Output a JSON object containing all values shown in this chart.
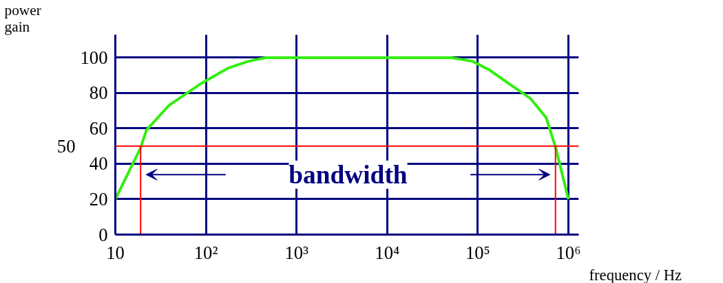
{
  "chart_data": {
    "type": "line",
    "xlabel": "frequency / Hz",
    "ylabel": "power gain",
    "log": "x",
    "xlim": [
      10,
      1300000
    ],
    "ylim": [
      0,
      113
    ],
    "xticks": [
      10,
      {
        "value": 100,
        "label": "10²"
      },
      {
        "value": 1000,
        "label": "10³"
      },
      {
        "value": 10000,
        "label": "10⁴"
      },
      {
        "value": 100000,
        "label": "10⁵"
      },
      {
        "value": 1000000,
        "label": "10⁶"
      }
    ],
    "yticks": [
      0,
      20,
      40,
      60,
      80,
      100
    ],
    "grid": true,
    "marker": "none",
    "line_style": "solid",
    "series": [
      {
        "color": "#33ee11",
        "x": [
          10,
          19,
          22,
          39,
          86,
          174,
          295,
          457,
          51000,
          87000,
          135000,
          225000,
          380000,
          570000,
          725000,
          1000000
        ],
        "values": [
          20,
          49,
          59,
          73,
          85,
          94,
          98,
          100,
          100,
          98,
          93,
          85,
          77,
          66,
          49,
          20
        ]
      },
      {
        "color": "#ff0000",
        "x": [
          19,
          19
        ],
        "values": [
          0,
          50
        ]
      },
      {
        "color": "#ff0000",
        "x": [
          720000,
          720000
        ],
        "values": [
          0,
          50
        ]
      }
    ],
    "ref_lines": [
      {
        "axis": "y",
        "value": 50,
        "label": "50",
        "color": "#ff0000"
      }
    ],
    "annotations": [
      "bandwidth"
    ]
  }
}
